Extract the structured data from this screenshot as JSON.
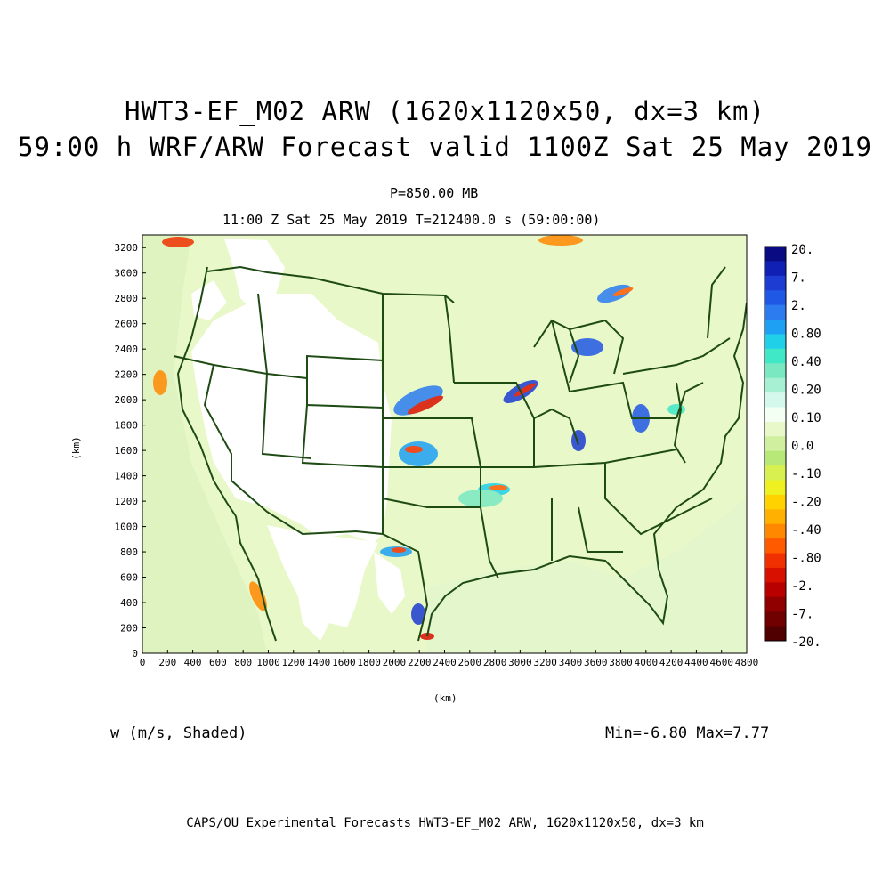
{
  "title": {
    "line1": "HWT3-EF_M02 ARW (1620x1120x50, dx=3 km)",
    "line2": "59:00 h WRF/ARW Forecast valid 1100Z Sat 25 May 2019"
  },
  "subtitle": {
    "pressure_level": "P=850.00 MB",
    "time_line": "11:00 Z Sat 25 May 2019    T=212400.0 s (59:00:00)"
  },
  "axes": {
    "x_label": "(km)",
    "y_label": "(km)",
    "x_ticks": [
      "0",
      "200",
      "400",
      "600",
      "800",
      "1000",
      "1200",
      "1400",
      "1600",
      "1800",
      "2000",
      "2200",
      "2400",
      "2600",
      "2800",
      "3000",
      "3200",
      "3400",
      "3600",
      "3800",
      "4000",
      "4200",
      "4400",
      "4600",
      "4800"
    ],
    "y_ticks": [
      "0",
      "200",
      "400",
      "600",
      "800",
      "1000",
      "1200",
      "1400",
      "1600",
      "1800",
      "2000",
      "2200",
      "2400",
      "2600",
      "2800",
      "3000",
      "3200"
    ]
  },
  "field": {
    "label": "w (m/s, Shaded)",
    "min_max": "Min=-6.80 Max=7.77"
  },
  "colorbar": {
    "labels": [
      "20.",
      "7.",
      "2.",
      "0.80",
      "0.40",
      "0.20",
      "0.10",
      "0.0",
      "-.10",
      "-.20",
      "-.40",
      "-.80",
      "-2.",
      "-7.",
      "-20."
    ],
    "colors": [
      "#0a0a82",
      "#1020b4",
      "#1c3cd2",
      "#2058e6",
      "#2c7cf0",
      "#1ea0f4",
      "#20d0e8",
      "#40e8c8",
      "#7ae8c0",
      "#a8f0d4",
      "#d4f8ec",
      "#f4fff4",
      "#e8f8c8",
      "#d0f0a0",
      "#b8e878",
      "#d8f050",
      "#eef020",
      "#ffd200",
      "#ffb000",
      "#ff8800",
      "#ff5a00",
      "#f03000",
      "#d81000",
      "#b80000",
      "#900000",
      "#700000",
      "#500000"
    ]
  },
  "footer": "CAPS/OU Experimental Forecasts  HWT3-EF_M02 ARW, 1620x1120x50, dx=3 km"
}
